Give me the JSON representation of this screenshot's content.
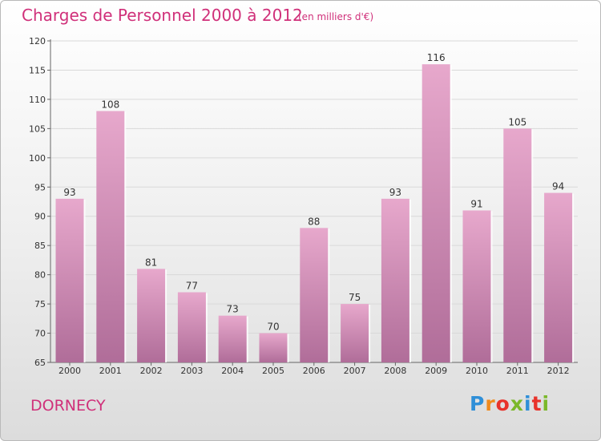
{
  "header": {
    "title": "Charges de Personnel 2000 à 2012",
    "subtitle": "(en milliers d'€)"
  },
  "footer": {
    "location": "DORNECY",
    "brand": "Proxiti",
    "brand_colors": [
      "#2f8fd8",
      "#f08a1c",
      "#e8332b",
      "#7bb82a",
      "#2f8fd8",
      "#e8332b",
      "#7bb82a"
    ]
  },
  "colors": {
    "bar_top": "#e7a8cc",
    "bar_bottom": "#b06d99",
    "accent": "#d0307a"
  },
  "chart_data": {
    "type": "bar",
    "title": "Charges de Personnel 2000 à 2012",
    "subtitle": "(en milliers d'€)",
    "categories": [
      "2000",
      "2001",
      "2002",
      "2003",
      "2004",
      "2005",
      "2006",
      "2007",
      "2008",
      "2009",
      "2010",
      "2011",
      "2012"
    ],
    "values": [
      93,
      108,
      81,
      77,
      73,
      70,
      88,
      75,
      93,
      116,
      91,
      105,
      94
    ],
    "ylim": [
      65,
      120
    ],
    "yticks": [
      65,
      70,
      75,
      80,
      85,
      90,
      95,
      100,
      105,
      110,
      115,
      120
    ],
    "grid": true,
    "legend": "none"
  }
}
